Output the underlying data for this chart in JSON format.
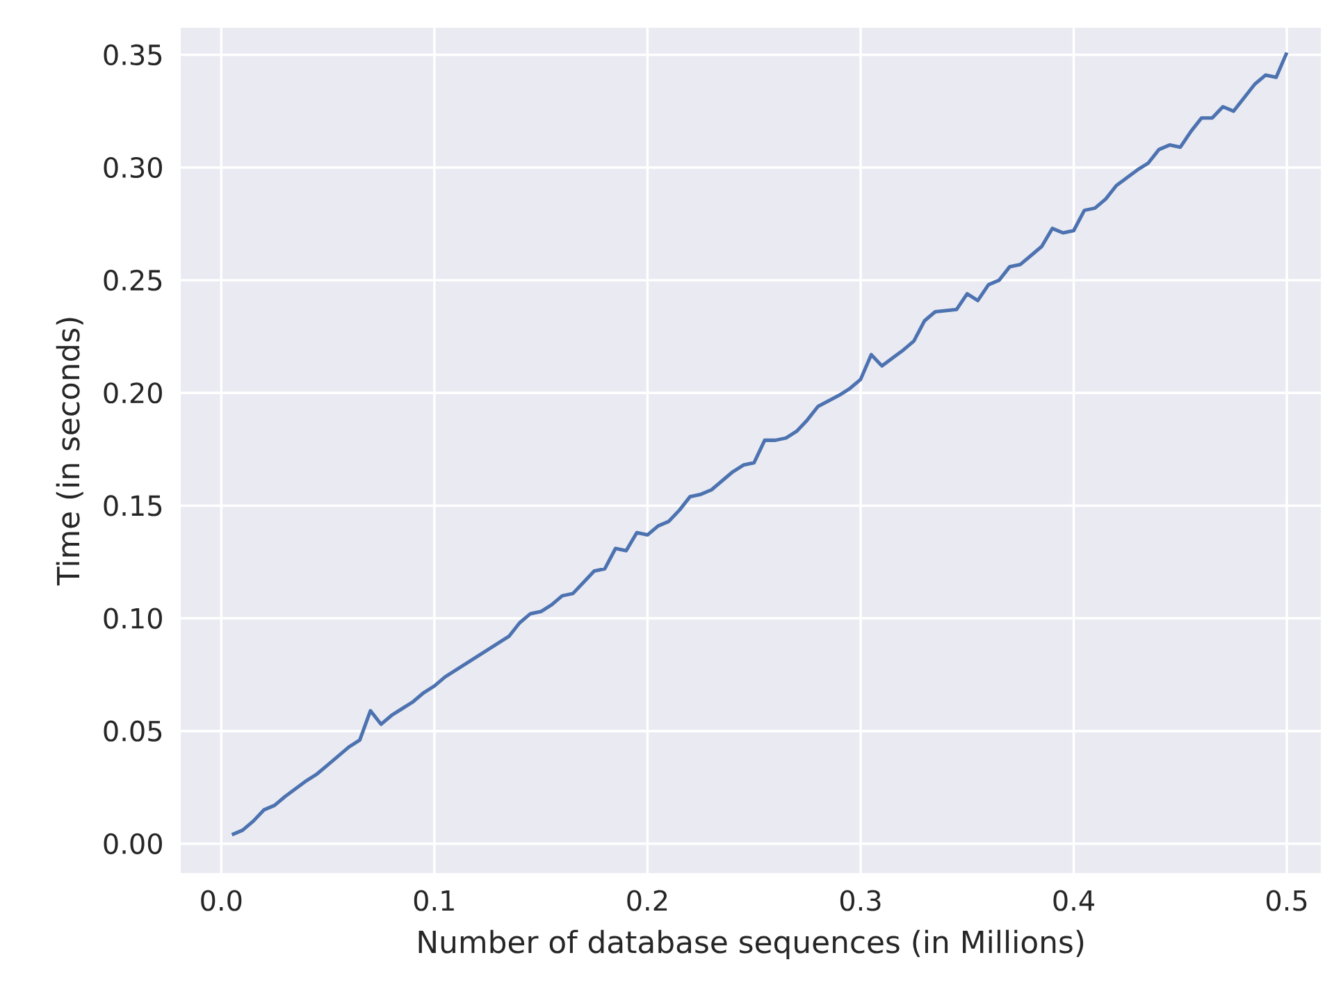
{
  "chart_data": {
    "type": "line",
    "xlabel": "Number of database sequences (in Millions)",
    "ylabel": "Time (in seconds)",
    "x": [
      0.005,
      0.01,
      0.015,
      0.02,
      0.025,
      0.03,
      0.04,
      0.045,
      0.05,
      0.055,
      0.06,
      0.065,
      0.07,
      0.075,
      0.08,
      0.085,
      0.09,
      0.095,
      0.1,
      0.105,
      0.11,
      0.12,
      0.13,
      0.135,
      0.14,
      0.145,
      0.15,
      0.155,
      0.16,
      0.165,
      0.17,
      0.175,
      0.18,
      0.185,
      0.19,
      0.195,
      0.2,
      0.205,
      0.21,
      0.215,
      0.22,
      0.225,
      0.23,
      0.235,
      0.24,
      0.245,
      0.25,
      0.255,
      0.26,
      0.265,
      0.27,
      0.275,
      0.28,
      0.29,
      0.295,
      0.3,
      0.305,
      0.31,
      0.32,
      0.325,
      0.33,
      0.335,
      0.345,
      0.35,
      0.355,
      0.36,
      0.365,
      0.37,
      0.375,
      0.38,
      0.385,
      0.39,
      0.395,
      0.4,
      0.405,
      0.41,
      0.415,
      0.42,
      0.43,
      0.435,
      0.44,
      0.445,
      0.45,
      0.455,
      0.46,
      0.465,
      0.47,
      0.475,
      0.48,
      0.485,
      0.49,
      0.495,
      0.5
    ],
    "series": [
      {
        "color": "#4c72b0",
        "values": [
          0.004,
          0.006,
          0.01,
          0.015,
          0.017,
          0.021,
          0.028,
          0.031,
          0.035,
          0.039,
          0.043,
          0.046,
          0.059,
          0.053,
          0.057,
          0.06,
          0.063,
          0.067,
          0.07,
          0.074,
          0.077,
          0.083,
          0.089,
          0.092,
          0.098,
          0.102,
          0.103,
          0.106,
          0.11,
          0.111,
          0.116,
          0.121,
          0.122,
          0.131,
          0.13,
          0.138,
          0.137,
          0.141,
          0.143,
          0.148,
          0.154,
          0.155,
          0.157,
          0.161,
          0.165,
          0.168,
          0.169,
          0.179,
          0.179,
          0.18,
          0.183,
          0.188,
          0.194,
          0.199,
          0.202,
          0.206,
          0.217,
          0.212,
          0.219,
          0.223,
          0.232,
          0.236,
          0.237,
          0.244,
          0.241,
          0.248,
          0.25,
          0.256,
          0.257,
          0.261,
          0.265,
          0.273,
          0.271,
          0.272,
          0.281,
          0.282,
          0.286,
          0.292,
          0.299,
          0.302,
          0.308,
          0.31,
          0.309,
          0.316,
          0.322,
          0.322,
          0.327,
          0.325,
          0.331,
          0.337,
          0.341,
          0.34,
          0.351
        ]
      }
    ],
    "xlim": [
      -0.019,
      0.516
    ],
    "ylim": [
      -0.013,
      0.362
    ],
    "xticks": [
      {
        "value": 0,
        "label": "0.0"
      },
      0.1,
      0.2,
      0.3,
      0.4,
      0.5
    ],
    "yticks": [
      {
        "value": 0,
        "label": "0.00"
      },
      0.05,
      {
        "value": 0.1,
        "label": "0.10"
      },
      0.15,
      {
        "value": 0.2,
        "label": "0.20"
      },
      0.25,
      {
        "value": 0.3,
        "label": "0.30"
      },
      0.35
    ],
    "grid": true,
    "marker": "none",
    "line_style": "solid"
  }
}
